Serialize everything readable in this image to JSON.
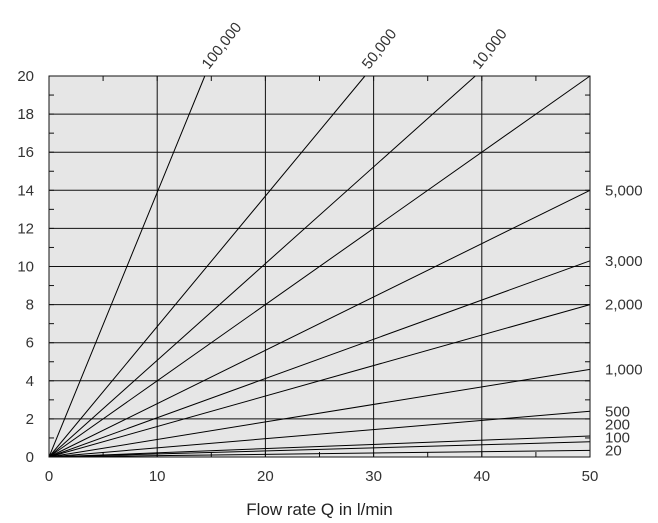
{
  "chart_data": {
    "type": "line",
    "title": "",
    "xlabel": "Flow rate Q in l/min",
    "ylabel": "",
    "xlim": [
      0,
      50
    ],
    "ylim": [
      0,
      20
    ],
    "x_ticks": [
      0,
      10,
      20,
      30,
      40,
      50
    ],
    "x_tick_labels": [
      "0",
      "10",
      "20",
      "30",
      "40",
      "50"
    ],
    "y_ticks": [
      0,
      2,
      4,
      6,
      8,
      10,
      12,
      14,
      16,
      18,
      20
    ],
    "y_tick_labels": [
      "0",
      "2",
      "4",
      "6",
      "8",
      "10",
      "12",
      "14",
      "16",
      "18",
      "20"
    ],
    "grid": true,
    "background_color": "#e6e6e6",
    "line_color": "#000000",
    "series": [
      {
        "name": "100,000",
        "x": [
          0,
          14.4
        ],
        "y": [
          0,
          20
        ]
      },
      {
        "name": "50,000",
        "x": [
          0,
          29.2
        ],
        "y": [
          0,
          20
        ]
      },
      {
        "name": "10,000",
        "x": [
          0,
          39.4
        ],
        "y": [
          0,
          20
        ]
      },
      {
        "name": "",
        "x": [
          0,
          50
        ],
        "y": [
          0,
          20
        ]
      },
      {
        "name": "5,000",
        "x": [
          0,
          50
        ],
        "y": [
          0,
          14
        ]
      },
      {
        "name": "3,000",
        "x": [
          0,
          50
        ],
        "y": [
          0,
          10.3
        ]
      },
      {
        "name": "2,000",
        "x": [
          0,
          50
        ],
        "y": [
          0,
          8
        ]
      },
      {
        "name": "1,000",
        "x": [
          0,
          50
        ],
        "y": [
          0,
          4.6
        ]
      },
      {
        "name": "500",
        "x": [
          0,
          50
        ],
        "y": [
          0,
          2.4
        ]
      },
      {
        "name": "200",
        "x": [
          0,
          50
        ],
        "y": [
          0,
          1.1
        ]
      },
      {
        "name": "100",
        "x": [
          0,
          50
        ],
        "y": [
          0,
          0.8
        ]
      },
      {
        "name": "20",
        "x": [
          0,
          50
        ],
        "y": [
          0,
          0.35
        ]
      }
    ]
  }
}
